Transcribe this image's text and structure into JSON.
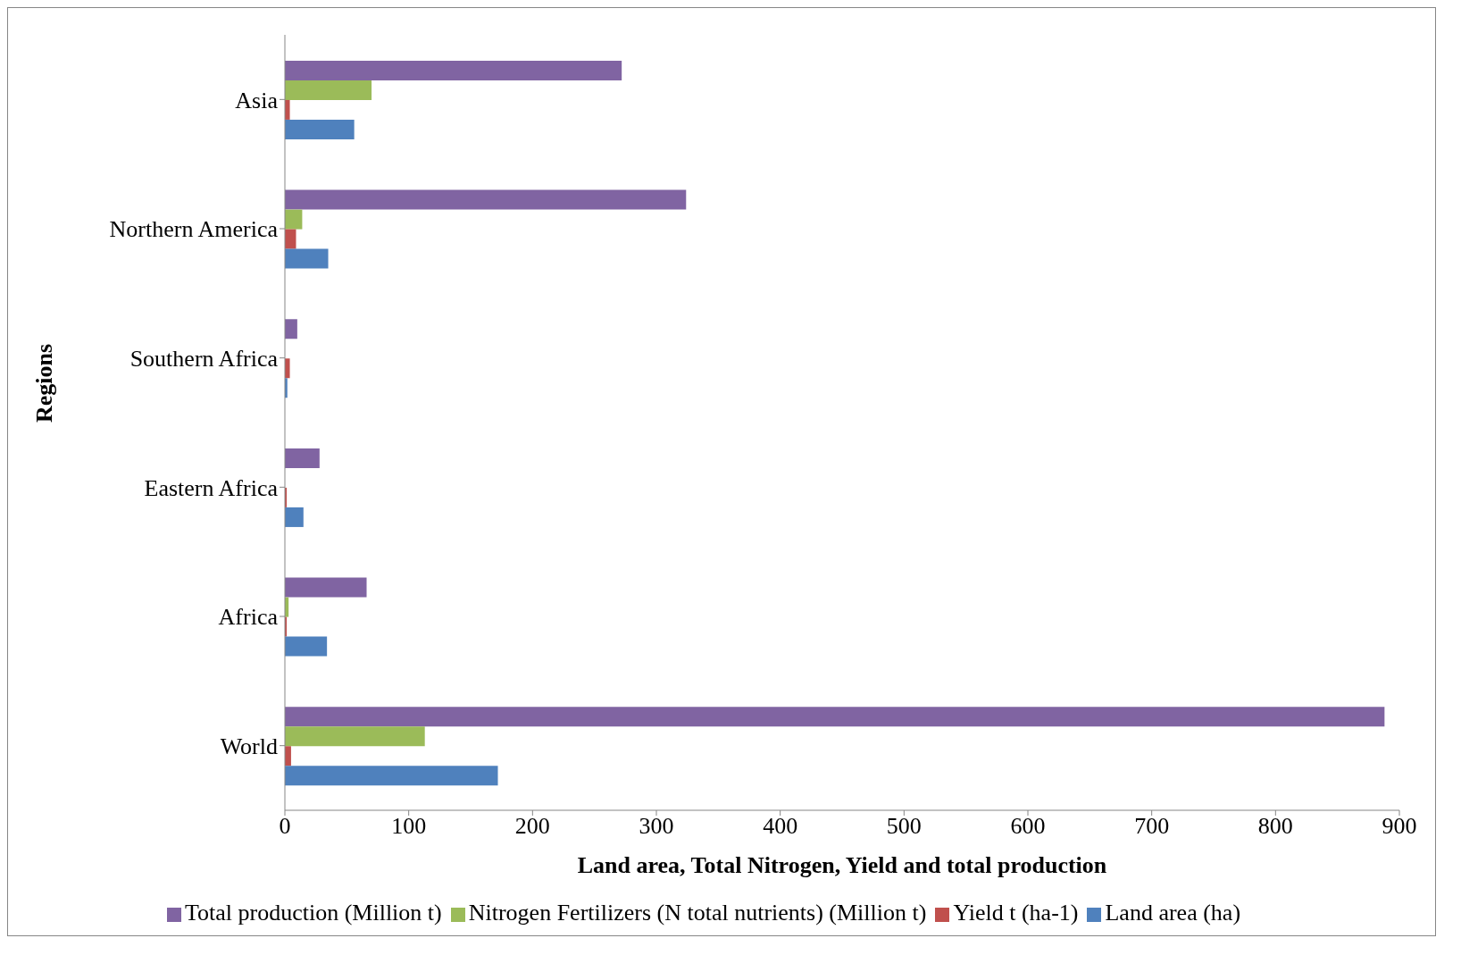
{
  "chart_data": {
    "type": "bar",
    "orientation": "horizontal",
    "xlabel": "Land area, Total Nitrogen, Yield and total production",
    "ylabel": "Regions",
    "categories": [
      "Asia",
      "Northern America",
      "Southern Africa",
      "Eastern Africa",
      "Africa",
      "World"
    ],
    "series": [
      {
        "name": "Total production (Million t)",
        "color": "#8064a2",
        "values": [
          272,
          324,
          10,
          28,
          66,
          888
        ]
      },
      {
        "name": "Nitrogen Fertilizers (N total nutrients) (Million t)",
        "color": "#9bbb59",
        "values": [
          70,
          14,
          null,
          null,
          3,
          113
        ]
      },
      {
        "name": "Yield t (ha-1)",
        "color": "#c0504d",
        "values": [
          4,
          9,
          4,
          1.5,
          1.5,
          5
        ]
      },
      {
        "name": "Land area (ha)",
        "color": "#4f81bd",
        "values": [
          56,
          35,
          2,
          15,
          34,
          172
        ]
      }
    ],
    "xlim": [
      0,
      900
    ],
    "xticks": [
      0,
      100,
      200,
      300,
      400,
      500,
      600,
      700,
      800,
      900
    ],
    "grid": false,
    "legend": "bottom"
  }
}
